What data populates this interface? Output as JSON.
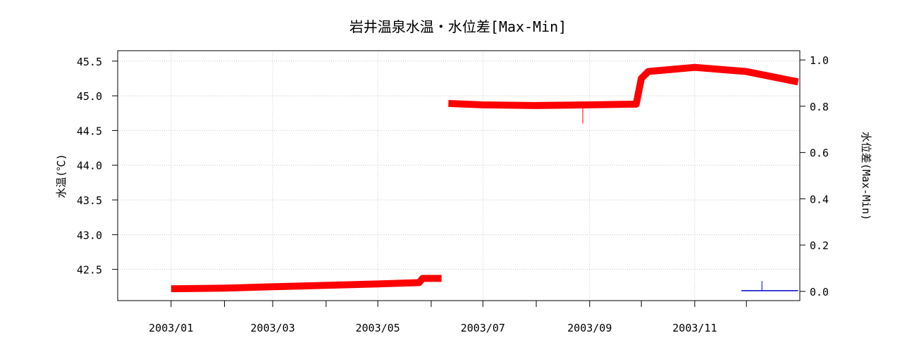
{
  "chart_data": {
    "type": "line",
    "title": "岩井温泉水温・水位差[Max-Min]",
    "ylabel": "水温(℃)",
    "y2label": "水位差(Max-Min)",
    "xlim": [
      "2002-12-01",
      "2004-01-01"
    ],
    "ylim": [
      42.05,
      45.65
    ],
    "y2lim": [
      -0.04,
      1.04
    ],
    "x_ticks": [
      "2003-01-01",
      "2003-02-01",
      "2003-03-01",
      "2003-04-01",
      "2003-05-01",
      "2003-06-01",
      "2003-07-01",
      "2003-08-01",
      "2003-09-01",
      "2003-10-01",
      "2003-11-01",
      "2003-12-01"
    ],
    "x_tick_labels": [
      {
        "date": "2003-01-01",
        "label": "2003/01"
      },
      {
        "date": "2003-03-01",
        "label": "2003/03"
      },
      {
        "date": "2003-05-01",
        "label": "2003/05"
      },
      {
        "date": "2003-07-01",
        "label": "2003/07"
      },
      {
        "date": "2003-09-01",
        "label": "2003/09"
      },
      {
        "date": "2003-11-01",
        "label": "2003/11"
      }
    ],
    "y_ticks": [
      "42.5",
      "43.0",
      "43.5",
      "44.0",
      "44.5",
      "45.0",
      "45.5"
    ],
    "y2_ticks": [
      "0.0",
      "0.2",
      "0.4",
      "0.6",
      "0.8",
      "1.0"
    ],
    "grid": true,
    "series": [
      {
        "axis": "left",
        "color": "#ff0000",
        "band_width": 0.1,
        "segments": [
          [
            [
              "2003-01-01",
              42.22
            ],
            [
              "2003-02-01",
              42.23
            ],
            [
              "2003-03-01",
              42.25
            ],
            [
              "2003-04-01",
              42.27
            ],
            [
              "2003-05-01",
              42.29
            ],
            [
              "2003-05-25",
              42.31
            ],
            [
              "2003-05-27",
              42.37
            ],
            [
              "2003-06-07",
              42.37
            ]
          ],
          [
            [
              "2003-06-11",
              44.89
            ],
            [
              "2003-07-01",
              44.87
            ],
            [
              "2003-08-01",
              44.86
            ],
            [
              "2003-09-01",
              44.87
            ],
            [
              "2003-09-28",
              44.88
            ],
            [
              "2003-10-01",
              45.25
            ],
            [
              "2003-10-05",
              45.35
            ],
            [
              "2003-11-01",
              45.41
            ],
            [
              "2003-12-01",
              45.35
            ],
            [
              "2003-12-31",
              45.2
            ]
          ]
        ],
        "spikes": [
          [
            "2003-08-28",
            44.6
          ]
        ]
      },
      {
        "axis": "right",
        "color": "#0000cc",
        "segments": [
          [
            [
              "2003-11-28",
              0.003
            ],
            [
              "2003-12-31",
              0.003
            ]
          ]
        ],
        "spikes": [
          [
            "2003-12-10",
            0.045
          ]
        ]
      }
    ]
  }
}
